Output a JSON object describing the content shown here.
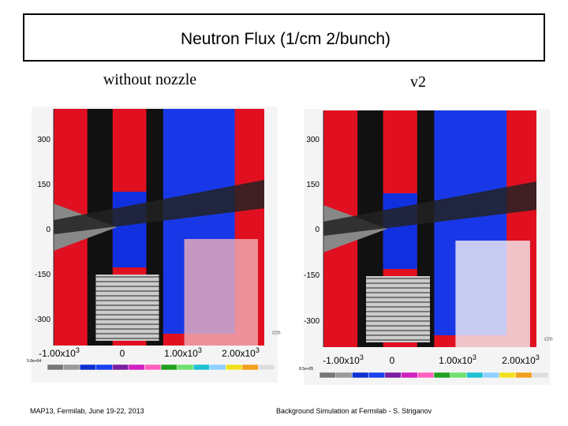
{
  "header": {
    "title": "Neutron Flux (1/cm 2/bunch)"
  },
  "panels": [
    {
      "label": "without nozzle",
      "y_ticks": [
        "300",
        "150",
        "0",
        "-150",
        "-300"
      ],
      "x_ticks": [
        {
          "text": "-1.00x10",
          "sup": "3"
        },
        {
          "text": "0"
        },
        {
          "text": "1.00x10",
          "sup": "3"
        },
        {
          "text": "2.00x10",
          "sup": "3"
        }
      ],
      "unit": "cm",
      "scale_min": "5.8e+04"
    },
    {
      "label": "v2",
      "y_ticks": [
        "300",
        "150",
        "0",
        "-150",
        "-300"
      ],
      "x_ticks": [
        {
          "text": "-1.00x10",
          "sup": "3"
        },
        {
          "text": "0"
        },
        {
          "text": "1.00x10",
          "sup": "3"
        },
        {
          "text": "2.00x10",
          "sup": "3"
        }
      ],
      "unit": "cm",
      "scale_min": "8.5e+05"
    }
  ],
  "footer": {
    "left": "MAP13, Fermilab, June 19-22, 2013",
    "right": "Background Simulation at Fermilab - S. Striganov"
  }
}
